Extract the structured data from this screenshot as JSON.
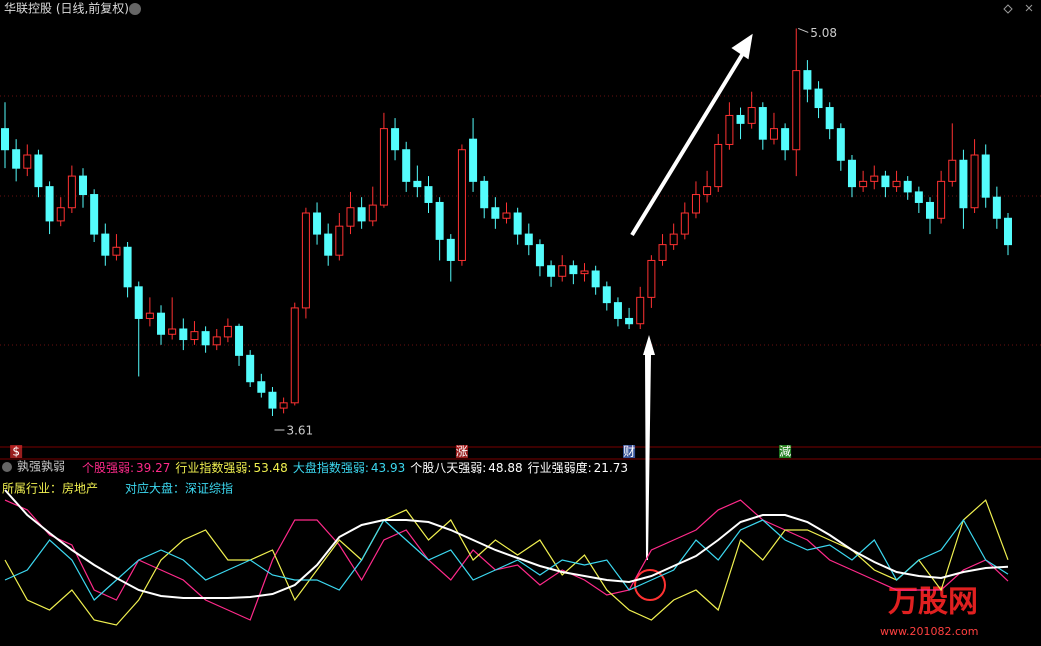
{
  "chart_data": {
    "type": "candlestick",
    "title": "华联控股 (日线,前复权)",
    "ylim": [
      3.5,
      5.15
    ],
    "up_color": "#ff3232",
    "down_color": "#54fcfc",
    "max_label": 5.08,
    "max_index": 71,
    "min_label": 3.61,
    "min_index": 24,
    "ohlc": [
      [
        4.7,
        4.8,
        4.55,
        4.62
      ],
      [
        4.62,
        4.66,
        4.5,
        4.55
      ],
      [
        4.55,
        4.64,
        4.52,
        4.6
      ],
      [
        4.6,
        4.62,
        4.44,
        4.48
      ],
      [
        4.48,
        4.5,
        4.3,
        4.35
      ],
      [
        4.35,
        4.44,
        4.33,
        4.4
      ],
      [
        4.4,
        4.56,
        4.38,
        4.52
      ],
      [
        4.52,
        4.55,
        4.4,
        4.45
      ],
      [
        4.45,
        4.47,
        4.27,
        4.3
      ],
      [
        4.3,
        4.34,
        4.18,
        4.22
      ],
      [
        4.22,
        4.3,
        4.2,
        4.25
      ],
      [
        4.25,
        4.27,
        4.06,
        4.1
      ],
      [
        4.1,
        4.12,
        3.76,
        3.98
      ],
      [
        3.98,
        4.06,
        3.95,
        4.0
      ],
      [
        4.0,
        4.03,
        3.88,
        3.92
      ],
      [
        3.92,
        4.06,
        3.9,
        3.94
      ],
      [
        3.94,
        3.98,
        3.86,
        3.9
      ],
      [
        3.9,
        3.97,
        3.88,
        3.93
      ],
      [
        3.93,
        3.95,
        3.85,
        3.88
      ],
      [
        3.88,
        3.94,
        3.86,
        3.91
      ],
      [
        3.91,
        3.98,
        3.89,
        3.95
      ],
      [
        3.95,
        3.96,
        3.8,
        3.84
      ],
      [
        3.84,
        3.86,
        3.72,
        3.74
      ],
      [
        3.74,
        3.77,
        3.68,
        3.7
      ],
      [
        3.7,
        3.72,
        3.61,
        3.64
      ],
      [
        3.64,
        3.68,
        3.62,
        3.66
      ],
      [
        3.66,
        4.04,
        3.65,
        4.02
      ],
      [
        4.02,
        4.4,
        3.98,
        4.38
      ],
      [
        4.38,
        4.42,
        4.26,
        4.3
      ],
      [
        4.3,
        4.34,
        4.18,
        4.22
      ],
      [
        4.22,
        4.38,
        4.2,
        4.33
      ],
      [
        4.33,
        4.46,
        4.3,
        4.4
      ],
      [
        4.4,
        4.44,
        4.32,
        4.35
      ],
      [
        4.35,
        4.48,
        4.33,
        4.41
      ],
      [
        4.41,
        4.76,
        4.4,
        4.7
      ],
      [
        4.7,
        4.74,
        4.58,
        4.62
      ],
      [
        4.62,
        4.65,
        4.46,
        4.5
      ],
      [
        4.5,
        4.56,
        4.44,
        4.48
      ],
      [
        4.48,
        4.52,
        4.38,
        4.42
      ],
      [
        4.42,
        4.44,
        4.2,
        4.28
      ],
      [
        4.28,
        4.3,
        4.12,
        4.2
      ],
      [
        4.2,
        4.64,
        4.18,
        4.62
      ],
      [
        4.66,
        4.74,
        4.46,
        4.5
      ],
      [
        4.5,
        4.52,
        4.36,
        4.4
      ],
      [
        4.4,
        4.44,
        4.32,
        4.36
      ],
      [
        4.36,
        4.42,
        4.34,
        4.38
      ],
      [
        4.38,
        4.4,
        4.26,
        4.3
      ],
      [
        4.3,
        4.34,
        4.22,
        4.26
      ],
      [
        4.26,
        4.28,
        4.14,
        4.18
      ],
      [
        4.18,
        4.2,
        4.1,
        4.14
      ],
      [
        4.14,
        4.22,
        4.12,
        4.18
      ],
      [
        4.18,
        4.2,
        4.11,
        4.15
      ],
      [
        4.15,
        4.19,
        4.12,
        4.16
      ],
      [
        4.16,
        4.18,
        4.07,
        4.1
      ],
      [
        4.1,
        4.12,
        4.01,
        4.04
      ],
      [
        4.04,
        4.06,
        3.95,
        3.98
      ],
      [
        3.98,
        4.02,
        3.94,
        3.96
      ],
      [
        3.96,
        4.1,
        3.94,
        4.06
      ],
      [
        4.06,
        4.22,
        4.02,
        4.2
      ],
      [
        4.2,
        4.3,
        4.18,
        4.26
      ],
      [
        4.26,
        4.34,
        4.24,
        4.3
      ],
      [
        4.3,
        4.42,
        4.28,
        4.38
      ],
      [
        4.38,
        4.5,
        4.36,
        4.45
      ],
      [
        4.45,
        4.54,
        4.42,
        4.48
      ],
      [
        4.48,
        4.68,
        4.46,
        4.64
      ],
      [
        4.64,
        4.8,
        4.62,
        4.75
      ],
      [
        4.75,
        4.78,
        4.66,
        4.72
      ],
      [
        4.72,
        4.84,
        4.7,
        4.78
      ],
      [
        4.78,
        4.8,
        4.62,
        4.66
      ],
      [
        4.66,
        4.76,
        4.64,
        4.7
      ],
      [
        4.7,
        4.72,
        4.58,
        4.62
      ],
      [
        4.62,
        5.08,
        4.52,
        4.92
      ],
      [
        4.92,
        4.96,
        4.8,
        4.85
      ],
      [
        4.85,
        4.88,
        4.74,
        4.78
      ],
      [
        4.78,
        4.8,
        4.66,
        4.7
      ],
      [
        4.7,
        4.72,
        4.54,
        4.58
      ],
      [
        4.58,
        4.6,
        4.44,
        4.48
      ],
      [
        4.48,
        4.54,
        4.46,
        4.5
      ],
      [
        4.5,
        4.56,
        4.47,
        4.52
      ],
      [
        4.52,
        4.54,
        4.44,
        4.48
      ],
      [
        4.48,
        4.54,
        4.46,
        4.5
      ],
      [
        4.5,
        4.52,
        4.43,
        4.46
      ],
      [
        4.46,
        4.48,
        4.38,
        4.42
      ],
      [
        4.42,
        4.44,
        4.3,
        4.36
      ],
      [
        4.36,
        4.54,
        4.34,
        4.5
      ],
      [
        4.5,
        4.72,
        4.48,
        4.58
      ],
      [
        4.58,
        4.62,
        4.32,
        4.4
      ],
      [
        4.4,
        4.66,
        4.38,
        4.6
      ],
      [
        4.6,
        4.64,
        4.4,
        4.44
      ],
      [
        4.44,
        4.48,
        4.32,
        4.36
      ],
      [
        4.36,
        4.38,
        4.22,
        4.26
      ]
    ],
    "event_markers": [
      {
        "text": "$",
        "index": 1,
        "color": "#ff3232"
      },
      {
        "text": "涨",
        "index": 41,
        "color": "#ff3232"
      },
      {
        "text": "财",
        "index": 56,
        "color": "#5a8cff"
      },
      {
        "text": "減",
        "index": 70,
        "color": "#38d838"
      }
    ],
    "indicator": {
      "title": "孰强孰弱",
      "ylim": [
        0,
        100
      ],
      "readouts": [
        {
          "name": "个股强弱:",
          "value": 39.27,
          "color": "#ff2a8a",
          "values": [
            93.3,
            86.7,
            70,
            63.3,
            33.3,
            26.7,
            53.3,
            46.7,
            40,
            26.7,
            20,
            13.3,
            53.3,
            80,
            80,
            63.3,
            40,
            66.7,
            73.3,
            53.3,
            40,
            60,
            46.7,
            50,
            36.7,
            46.7,
            40,
            30,
            33.3,
            60,
            66.7,
            73.3,
            86.7,
            93.3,
            80,
            73.3,
            66.7,
            53.3,
            46.7,
            40,
            33.3,
            33.3,
            33.3,
            46.7,
            53.3,
            39.27
          ]
        },
        {
          "name": "行业指数强弱:",
          "value": 53.48,
          "color": "#f0f050",
          "values": [
            53.3,
            26.7,
            20,
            33.3,
            13.3,
            10,
            26.7,
            53.3,
            66.7,
            73.3,
            53.3,
            53.3,
            60,
            26.7,
            46.7,
            66.7,
            53.3,
            80,
            86.7,
            66.7,
            80,
            53.3,
            66.7,
            56.7,
            66.7,
            43.3,
            56.7,
            33.3,
            20,
            13.3,
            26.7,
            33.3,
            20,
            66.7,
            53.3,
            73.3,
            73.3,
            66.7,
            60,
            46.7,
            40,
            53.3,
            33.3,
            80,
            93.3,
            53.48
          ]
        },
        {
          "name": "大盘指数强弱:",
          "value": 43.93,
          "color": "#3cd8f0",
          "values": [
            40,
            46.7,
            66.7,
            53.3,
            26.7,
            40,
            53.3,
            60,
            53.3,
            40,
            46.7,
            53.3,
            43.3,
            40,
            40,
            33.3,
            53.3,
            80,
            66.7,
            53.3,
            60,
            40,
            46.7,
            53.3,
            43.3,
            53.3,
            50,
            53.3,
            33.3,
            40,
            46.7,
            66.7,
            53.3,
            73.3,
            80,
            66.7,
            60,
            63.3,
            53.3,
            66.7,
            40,
            53.3,
            60,
            80,
            53.3,
            43.93
          ]
        },
        {
          "name": "个股八天强弱:",
          "value": 48.88,
          "color": "#ffffff",
          "values": [
            100,
            83.3,
            71.3,
            60,
            50,
            41.3,
            33.3,
            29.3,
            28,
            28,
            28,
            28.7,
            30.7,
            36.7,
            50,
            68.7,
            76.7,
            80,
            80,
            78.7,
            73.3,
            66.7,
            60,
            54.7,
            49.3,
            45.3,
            42.7,
            40,
            38.7,
            42.7,
            49.3,
            56,
            66.7,
            78.7,
            83.3,
            83.3,
            78.7,
            70,
            60,
            52,
            45.3,
            42.7,
            41.3,
            45.3,
            48,
            48.88
          ]
        },
        {
          "name": "行业强弱度:",
          "value": 21.73,
          "color": "#ffffff"
        }
      ],
      "industry_label": "所属行业：房地产",
      "index_label": "对应大盘：深证综指"
    },
    "watermark": {
      "name": "万股网",
      "url": "www.201082.com"
    }
  }
}
